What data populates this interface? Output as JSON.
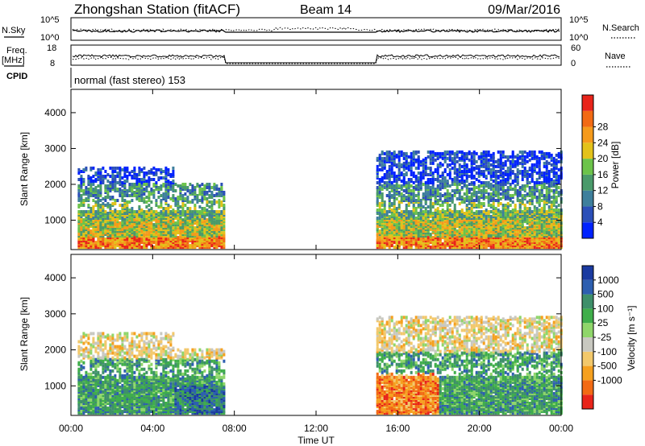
{
  "header": {
    "title": "Zhongshan Station (fitACF)",
    "beam": "Beam 14",
    "date": "09/Mar/2016"
  },
  "noise_panel": {
    "left_label": "N.Sky",
    "left_ticks": [
      "10^5",
      "10^0"
    ],
    "right_label": "N.Search",
    "right_ticks": [
      "10^5",
      "10^0"
    ]
  },
  "freq_panel": {
    "left_label_1": "Freq.",
    "left_label_2": "[MHz]",
    "left_ticks": [
      "18",
      "8"
    ],
    "right_label": "Nave",
    "right_ticks": [
      "60",
      "0"
    ]
  },
  "cpid": {
    "label": "CPID",
    "text": "normal (fast stereo) 153"
  },
  "colors": {
    "power_scale": [
      "#0022ff",
      "#2b4fb8",
      "#3e7f9c",
      "#4a9a6a",
      "#6cc34a",
      "#e3c21a",
      "#f59a1b",
      "#f26a14",
      "#e8241a"
    ],
    "velocity_scale": [
      "#e8241a",
      "#f26a14",
      "#f5a01f",
      "#f2c86b",
      "#c8c8c0",
      "#8fd66a",
      "#3fae4a",
      "#3e8f6a",
      "#2d5fb0",
      "#1a3aa0"
    ]
  },
  "chart_data": [
    {
      "type": "heatmap",
      "name": "power",
      "ylabel": "Slant Range [km]",
      "colorbar_label": "Power [dB]",
      "colorbar_ticks": [
        "4",
        "8",
        "12",
        "16",
        "20",
        "24",
        "28"
      ],
      "ylim": [
        180,
        4650
      ],
      "yticks": [
        1000,
        2000,
        3000,
        4000
      ],
      "xlim_hours": [
        0,
        24
      ],
      "data_intervals_hours": [
        [
          0.33,
          7.55
        ],
        [
          14.95,
          24.0
        ]
      ]
    },
    {
      "type": "heatmap",
      "name": "velocity",
      "ylabel": "Slant Range [km]",
      "colorbar_label": "Velocity [m s⁻¹]",
      "colorbar_ticks": [
        "1000",
        "500",
        "100",
        "25",
        "-25",
        "-100",
        "-500",
        "-1000"
      ],
      "ylim": [
        180,
        4650
      ],
      "yticks": [
        1000,
        2000,
        3000,
        4000
      ],
      "xlim_hours": [
        0,
        24
      ],
      "data_intervals_hours": [
        [
          0.33,
          7.55
        ],
        [
          14.95,
          24.0
        ]
      ]
    }
  ],
  "x_axis": {
    "label": "Time UT",
    "ticks": [
      "00:00",
      "04:00",
      "08:00",
      "12:00",
      "16:00",
      "20:00",
      "00:00"
    ]
  }
}
